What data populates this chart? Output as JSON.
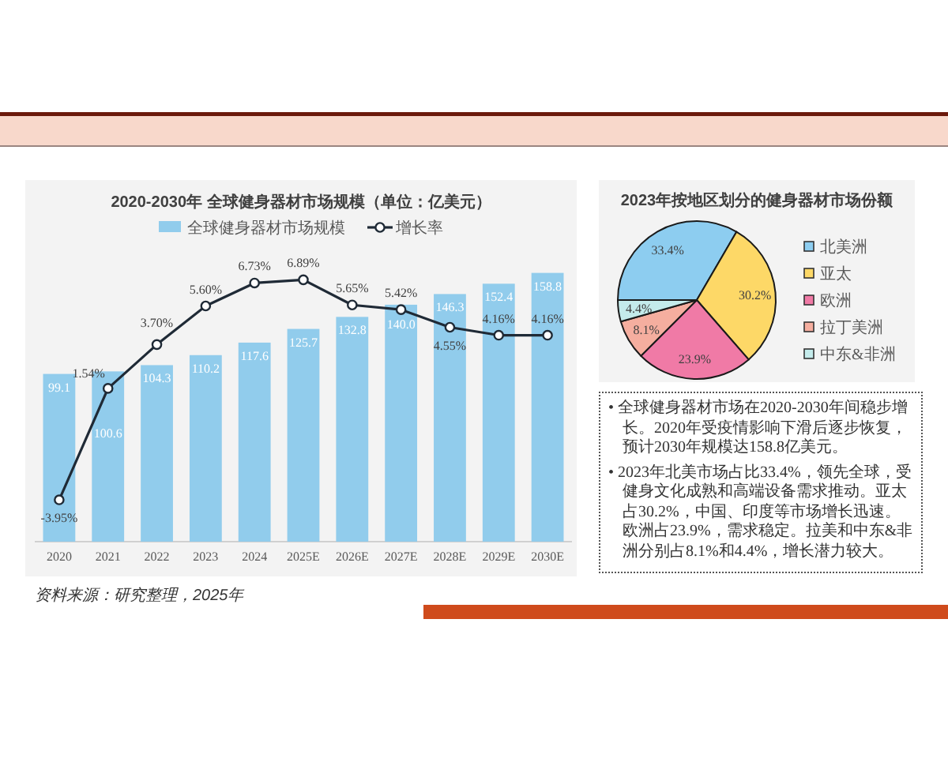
{
  "chart_data": [
    {
      "type": "bar",
      "title": "2020-2030年 全球健身器材市场规模（单位：亿美元）",
      "categories": [
        "2020",
        "2021",
        "2022",
        "2023",
        "2024",
        "2025E",
        "2026E",
        "2027E",
        "2028E",
        "2029E",
        "2030E"
      ],
      "series": [
        {
          "name": "全球健身器材市场规模",
          "type": "bar",
          "color": "#91ccec",
          "values": [
            99.1,
            100.6,
            104.3,
            110.2,
            117.6,
            125.7,
            132.8,
            140.0,
            146.3,
            152.4,
            158.8
          ],
          "value_labels": [
            "99.1",
            "100.6",
            "104.3",
            "110.2",
            "117.6",
            "125.7",
            "132.8",
            "140.0",
            "146.3",
            "152.4",
            "158.8"
          ]
        },
        {
          "name": "增长率",
          "type": "line",
          "axis": "y2",
          "color": "#1f2a36",
          "values": [
            -3.95,
            1.54,
            3.7,
            5.6,
            6.73,
            6.89,
            5.65,
            5.42,
            4.55,
            4.16,
            4.16
          ],
          "value_labels": [
            "-3.95%",
            "1.54%",
            "3.70%",
            "5.60%",
            "6.73%",
            "6.89%",
            "5.65%",
            "5.42%",
            "4.55%",
            "4.16%",
            "4.16%"
          ]
        }
      ],
      "tick_labels": "x",
      "marker": "circle",
      "legend": "top",
      "annotations": [
        "资料来源：研究整理，2025年"
      ]
    },
    {
      "type": "pie",
      "title": "2023年按地区划分的健身器材市场份额",
      "categories": [
        "北美洲",
        "亚太",
        "欧洲",
        "拉丁美洲",
        "中东&非洲"
      ],
      "values": [
        33.4,
        30.2,
        23.9,
        8.1,
        4.4
      ],
      "colors": [
        "#8dcdf0",
        "#fdd867",
        "#f07aa6",
        "#f5ae9f",
        "#c4ebeb"
      ],
      "value_labels": [
        "33.4%",
        "30.2%",
        "23.9%",
        "8.1%",
        "4.4%"
      ],
      "legend": "right"
    },
    {
      "type": "other",
      "annotations": [
        "• 全球健身器材市场在2020-2030年间稳步增长。2020年受疫情影响下滑后逐步恢复，预计2030年规模达158.8亿美元。",
        "• 2023年北美市场占比33.4%，领先全球，受健身文化成熟和高端设备需求推动。亚太占30.2%，中国、印度等市场增长迅速。欧洲占23.9%，需求稳定。拉美和中东&非洲分别占8.1%和4.4%，增长潜力较大。"
      ]
    }
  ]
}
